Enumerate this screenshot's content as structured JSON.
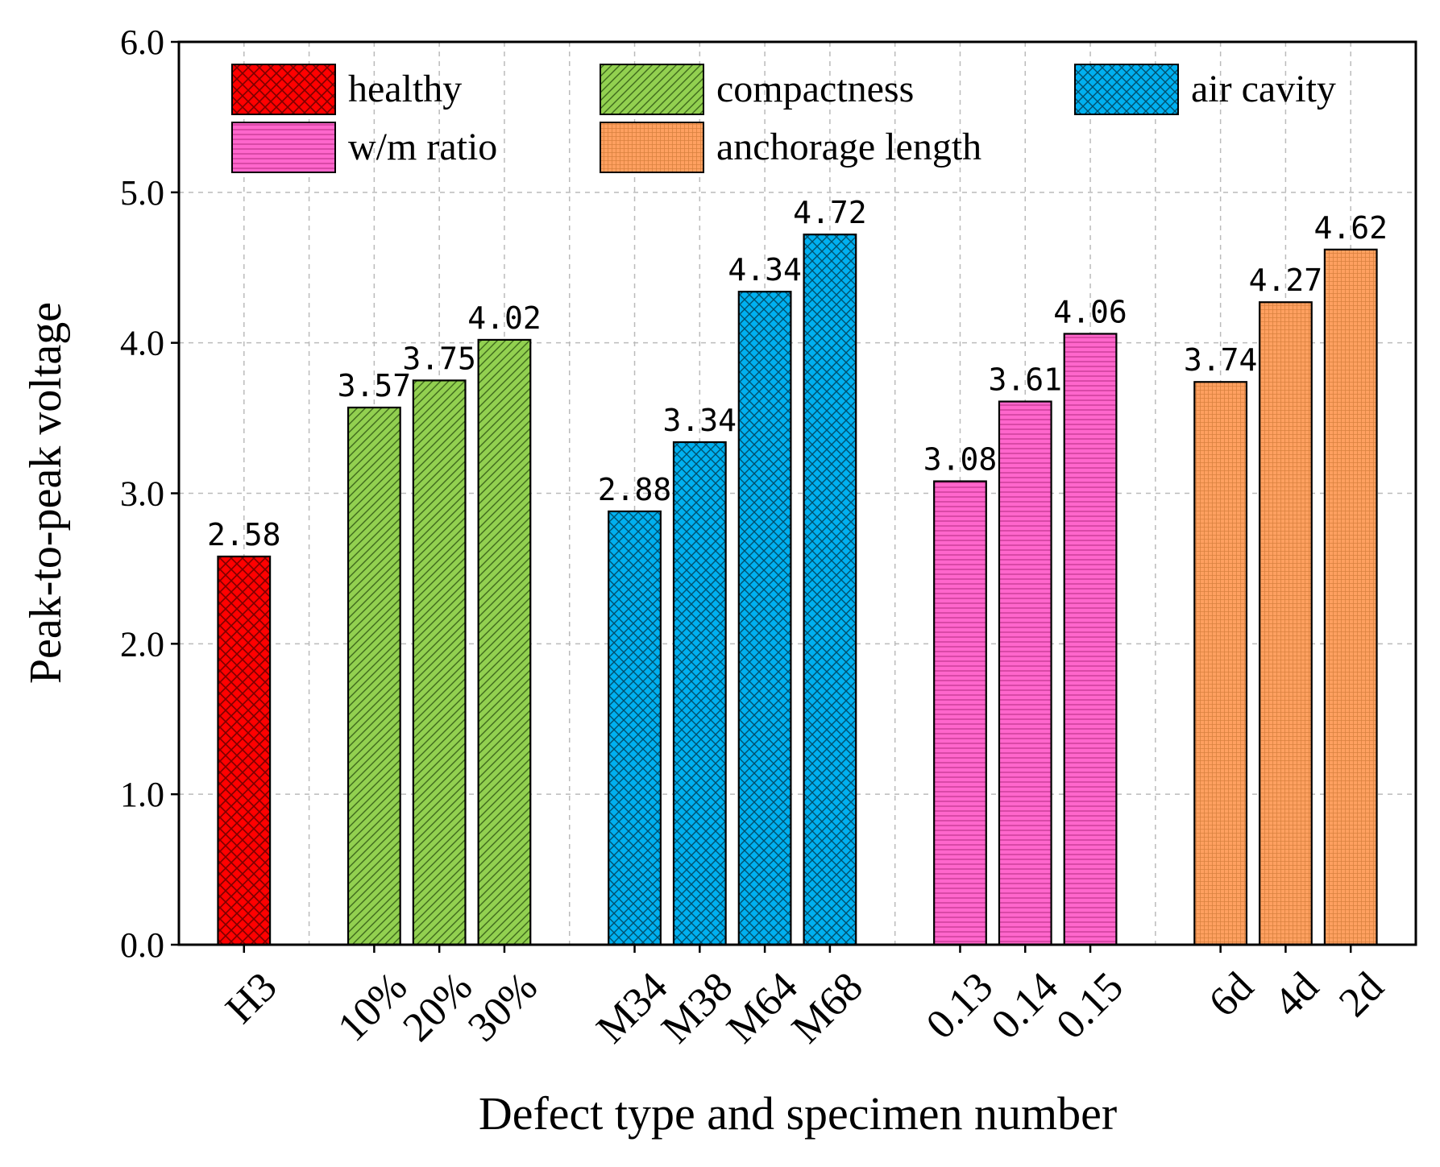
{
  "chart_data": {
    "type": "bar",
    "xlabel": "Defect type and specimen number",
    "ylabel": "Peak-to-peak voltage",
    "ylim": [
      0,
      6
    ],
    "yticks": [
      "0.0",
      "1.0",
      "2.0",
      "3.0",
      "4.0",
      "5.0",
      "6.0"
    ],
    "grid": true,
    "legend_position": "top",
    "series": [
      {
        "name": "healthy",
        "color": "#ff0000",
        "pattern": "crosshatch",
        "categories": [
          "H3"
        ],
        "values": [
          2.58
        ],
        "labels": [
          "2.58"
        ]
      },
      {
        "name": "compactness",
        "color": "#92d050",
        "pattern": "diagonal",
        "categories": [
          "10%",
          "20%",
          "30%"
        ],
        "values": [
          3.57,
          3.75,
          4.02
        ],
        "labels": [
          "3.57",
          "3.75",
          "4.02"
        ]
      },
      {
        "name": "air cavity",
        "color": "#00b0f0",
        "pattern": "crosshatch",
        "categories": [
          "M34",
          "M38",
          "M64",
          "M68"
        ],
        "values": [
          2.88,
          3.34,
          4.34,
          4.72
        ],
        "labels": [
          "2.88",
          "3.34",
          "4.34",
          "4.72"
        ]
      },
      {
        "name": "w/m ratio",
        "color": "#ff66cc",
        "pattern": "horizontal",
        "categories": [
          "0.13",
          "0.14",
          "0.15"
        ],
        "values": [
          3.08,
          3.61,
          4.06
        ],
        "labels": [
          "3.08",
          "3.61",
          "4.06"
        ]
      },
      {
        "name": "anchorage length",
        "color": "#ffa060",
        "pattern": "fine",
        "categories": [
          "6d",
          "4d",
          "2d"
        ],
        "values": [
          3.74,
          4.27,
          4.62
        ],
        "labels": [
          "3.74",
          "4.27",
          "4.62"
        ]
      }
    ]
  }
}
